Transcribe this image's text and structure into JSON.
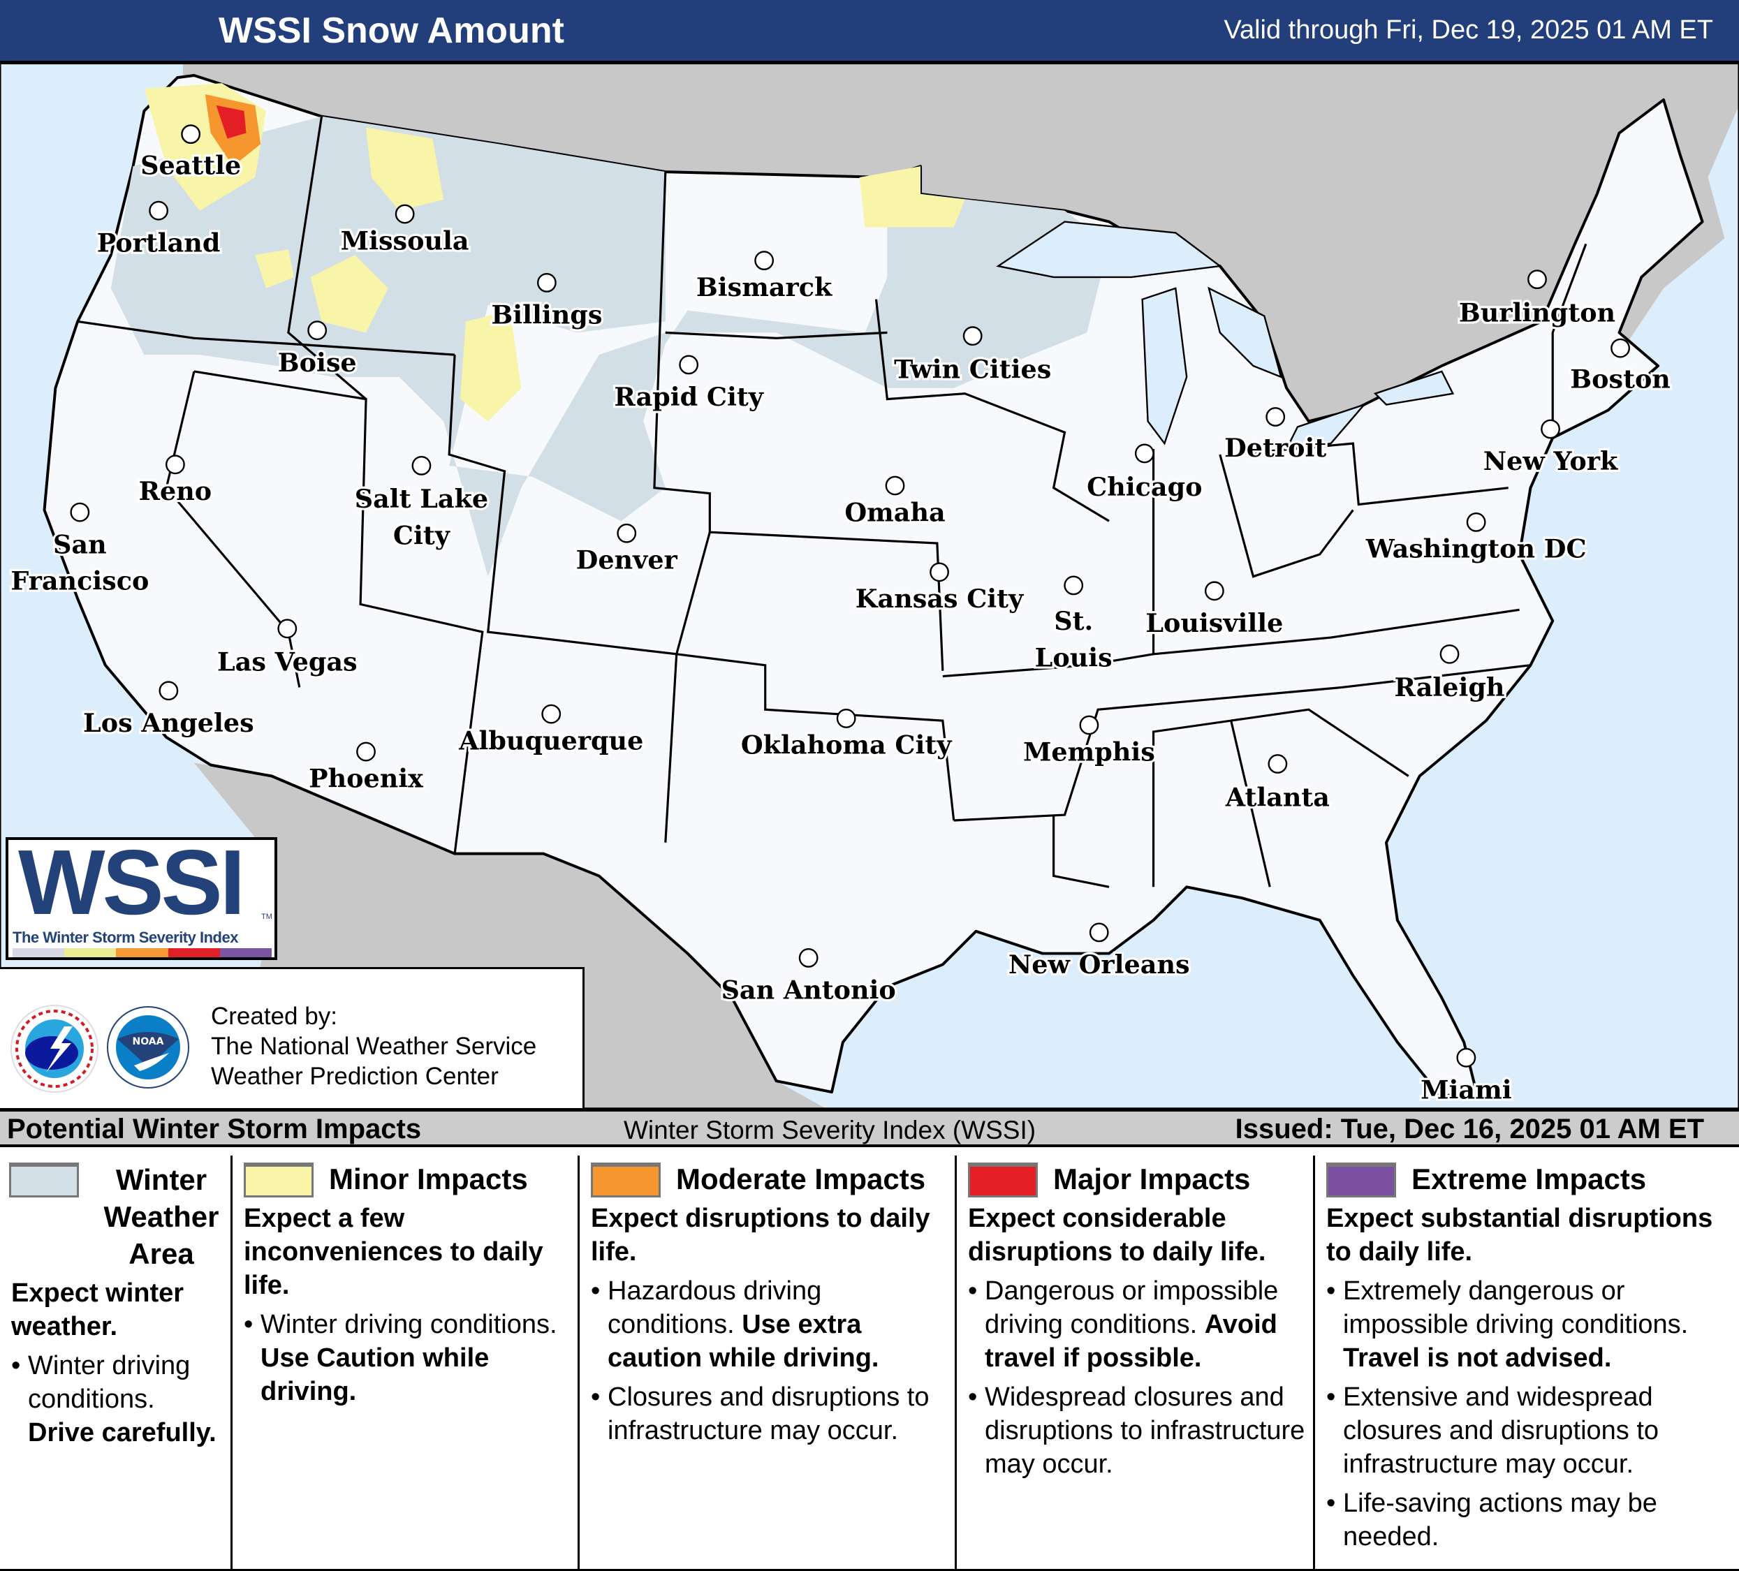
{
  "header": {
    "title": "WSSI Snow Amount",
    "valid": "Valid through Fri, Dec 19, 2025 01 AM ET"
  },
  "map": {
    "colors": {
      "ocean": "#dcedfb",
      "foreign_land": "#c8c8c8",
      "us_land": "#f7f9fc",
      "winter_weather_area": "#d3dfe6",
      "minor": "#f9f5a8",
      "moderate": "#f5962e",
      "major": "#e31e25"
    },
    "cities": [
      {
        "name": "Seattle"
      },
      {
        "name": "Portland"
      },
      {
        "name": "Missoula"
      },
      {
        "name": "Billings"
      },
      {
        "name": "Bismarck"
      },
      {
        "name": "Boise"
      },
      {
        "name": "Rapid City"
      },
      {
        "name": "Twin Cities"
      },
      {
        "name": "Burlington"
      },
      {
        "name": "Boston"
      },
      {
        "name": "Reno"
      },
      {
        "name": "Salt Lake City"
      },
      {
        "name": "Detroit"
      },
      {
        "name": "New York"
      },
      {
        "name": "Chicago"
      },
      {
        "name": "Omaha"
      },
      {
        "name": "Denver"
      },
      {
        "name": "Washington DC"
      },
      {
        "name": "San Francisco"
      },
      {
        "name": "Kansas City"
      },
      {
        "name": "St. Louis"
      },
      {
        "name": "Louisville"
      },
      {
        "name": "Las Vegas"
      },
      {
        "name": "Raleigh"
      },
      {
        "name": "Los Angeles"
      },
      {
        "name": "Albuquerque"
      },
      {
        "name": "Oklahoma City"
      },
      {
        "name": "Memphis"
      },
      {
        "name": "Phoenix"
      },
      {
        "name": "Atlanta"
      },
      {
        "name": "New Orleans"
      },
      {
        "name": "San Antonio"
      },
      {
        "name": "Miami"
      }
    ]
  },
  "logo": {
    "wordmark": "WSSI",
    "tm": "TM",
    "tagline": "The Winter Storm Severity Index",
    "bar_colors": [
      "#d9d8e6",
      "#ebeb94",
      "#f79a35",
      "#e2202a",
      "#7c54a2"
    ]
  },
  "credits": {
    "line1": "Created by:",
    "line2": "The National Weather Service",
    "line3": "Weather Prediction Center",
    "nws_logo_text": "NATIONAL WEATHER SERVICE",
    "noaa_logo_text": "NOAA"
  },
  "bottom_bar": {
    "left": "Potential Winter Storm Impacts",
    "center": "Winter Storm Severity Index (WSSI)",
    "right": "Issued: Tue, Dec 16, 2025 01 AM ET"
  },
  "legend": [
    {
      "title": "Winter Weather Area",
      "color": "#d3dfe6",
      "summary": "Expect winter weather.",
      "bullets": [
        {
          "text": "Winter driving conditions.",
          "bold": "Drive carefully."
        }
      ]
    },
    {
      "title": "Minor Impacts",
      "color": "#f9f5a8",
      "summary": "Expect a few inconveniences to daily life.",
      "bullets": [
        {
          "text": "Winter driving conditions.",
          "bold": "Use Caution while driving."
        }
      ]
    },
    {
      "title": "Moderate Impacts",
      "color": "#f5962e",
      "summary": "Expect disruptions to daily life.",
      "bullets": [
        {
          "text": "Hazardous driving conditions.",
          "bold": "Use extra caution while driving."
        },
        {
          "text": "Closures and disruptions to infrastructure may occur."
        }
      ]
    },
    {
      "title": "Major Impacts",
      "color": "#e31e25",
      "summary": "Expect considerable disruptions to daily life.",
      "bullets": [
        {
          "text": "Dangerous or impossible driving conditions.",
          "bold": "Avoid travel if possible."
        },
        {
          "text": "Widespread closures and disruptions to infrastructure may occur."
        }
      ]
    },
    {
      "title": "Extreme Impacts",
      "color": "#7b50a1",
      "summary": "Expect substantial disruptions to daily life.",
      "bullets": [
        {
          "text": "Extremely dangerous or impossible driving conditions.",
          "bold": "Travel is not advised."
        },
        {
          "text": "Extensive and widespread closures and disruptions to infrastructure may occur."
        },
        {
          "text": "Life-saving actions may be needed."
        }
      ]
    }
  ]
}
